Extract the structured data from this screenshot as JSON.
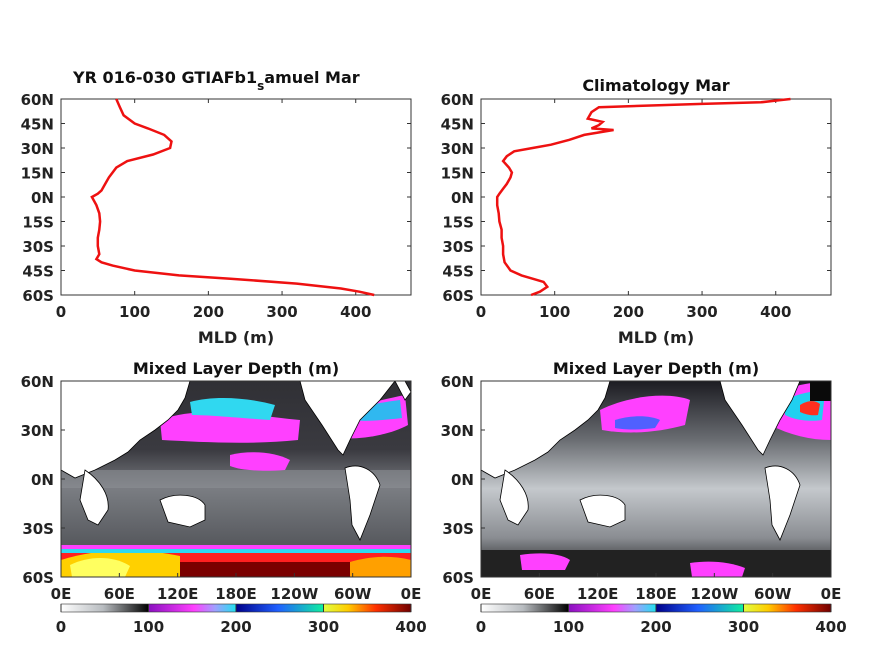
{
  "chart_data": [
    {
      "type": "line",
      "title_main": "YR 016-030 GTIAFb1",
      "title_sub": "s",
      "title_tail": "amuel Mar",
      "xlabel": "MLD (m)",
      "xlim": [
        0,
        475
      ],
      "ylim": [
        -60,
        60
      ],
      "xticks": [
        "0",
        "100",
        "200",
        "300",
        "400"
      ],
      "yticks": [
        "60N",
        "45N",
        "30N",
        "15N",
        "0N",
        "15S",
        "30S",
        "45S",
        "60S"
      ],
      "color": "#ee1111",
      "series": [
        {
          "lat": [
            60,
            55,
            50,
            45,
            42,
            38,
            34,
            30,
            26,
            22,
            18,
            15,
            12,
            8,
            4,
            2,
            0,
            -5,
            -10,
            -15,
            -20,
            -25,
            -30,
            -35,
            -38,
            -40,
            -42,
            -45,
            -48,
            -50,
            -53,
            -56,
            -58,
            -60
          ],
          "mld": [
            75,
            80,
            85,
            100,
            118,
            140,
            150,
            148,
            125,
            90,
            75,
            70,
            65,
            60,
            55,
            50,
            42,
            48,
            52,
            53,
            52,
            50,
            50,
            52,
            48,
            55,
            70,
            100,
            160,
            230,
            320,
            380,
            405,
            425
          ]
        }
      ]
    },
    {
      "type": "line",
      "title": "Climatology Mar",
      "xlabel": "MLD (m)",
      "xlim": [
        0,
        475
      ],
      "ylim": [
        -60,
        60
      ],
      "xticks": [
        "0",
        "100",
        "200",
        "300",
        "400"
      ],
      "yticks": [
        "60N",
        "45N",
        "30N",
        "15N",
        "0N",
        "15S",
        "30S",
        "45S",
        "60S"
      ],
      "color": "#ee1111",
      "series": [
        {
          "lat": [
            60,
            59,
            58,
            57,
            55,
            52,
            48,
            46,
            44,
            42,
            41,
            38,
            35,
            32,
            30,
            28,
            25,
            22,
            18,
            15,
            12,
            8,
            5,
            2,
            0,
            -5,
            -10,
            -15,
            -20,
            -25,
            -30,
            -35,
            -40,
            -45,
            -48,
            -50,
            -52,
            -55,
            -58,
            -60
          ],
          "mld": [
            420,
            400,
            380,
            300,
            160,
            150,
            145,
            165,
            160,
            150,
            180,
            140,
            120,
            95,
            70,
            45,
            35,
            30,
            38,
            42,
            40,
            35,
            30,
            25,
            22,
            22,
            24,
            25,
            28,
            28,
            30,
            30,
            32,
            40,
            55,
            70,
            85,
            90,
            80,
            68
          ]
        }
      ]
    },
    {
      "type": "heatmap",
      "title": "Mixed Layer Depth (m)",
      "yticks": [
        "60N",
        "30N",
        "0N",
        "30S",
        "60S"
      ],
      "xticks": [
        "0E",
        "60E",
        "120E",
        "180E",
        "120W",
        "60W",
        "0E"
      ],
      "colorbar": {
        "ticks": [
          "0",
          "100",
          "200",
          "300",
          "400"
        ],
        "range": [
          0,
          400
        ]
      },
      "notes": "model MLD map"
    },
    {
      "type": "heatmap",
      "title": "Mixed Layer Depth (m)",
      "yticks": [
        "60N",
        "30N",
        "0N",
        "30S",
        "60S"
      ],
      "xticks": [
        "0E",
        "60E",
        "120E",
        "180E",
        "120W",
        "60W",
        "0E"
      ],
      "colorbar": {
        "ticks": [
          "0",
          "100",
          "200",
          "300",
          "400"
        ],
        "range": [
          0,
          400
        ]
      },
      "notes": "climatology MLD map"
    }
  ]
}
